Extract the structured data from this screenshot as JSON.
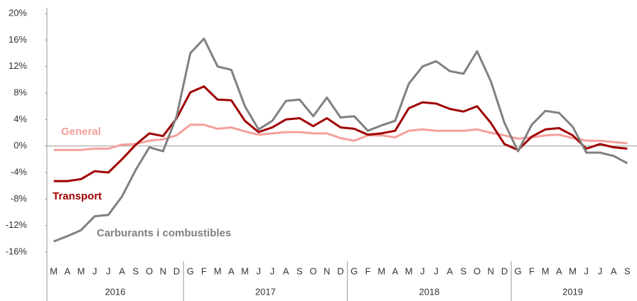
{
  "chart_data": {
    "type": "line",
    "groups": [
      {
        "label": "2016",
        "categories": [
          "M",
          "A",
          "M",
          "J",
          "J",
          "A",
          "S",
          "O",
          "N",
          "D"
        ]
      },
      {
        "label": "2017",
        "categories": [
          "G",
          "F",
          "M",
          "A",
          "M",
          "J",
          "J",
          "A",
          "S",
          "O",
          "N",
          "D"
        ]
      },
      {
        "label": "2018",
        "categories": [
          "G",
          "F",
          "M",
          "A",
          "M",
          "J",
          "J",
          "A",
          "S",
          "O",
          "N",
          "D"
        ]
      },
      {
        "label": "2019",
        "categories": [
          "G",
          "F",
          "M",
          "A",
          "M",
          "J",
          "J",
          "A",
          "S"
        ]
      }
    ],
    "series": [
      {
        "name": "General",
        "color": "#f4a09c",
        "values": [
          -0.6,
          -0.6,
          -0.6,
          -0.4,
          -0.4,
          0.2,
          0.3,
          0.8,
          1,
          1.6,
          3.2,
          3.2,
          2.6,
          2.8,
          2.2,
          1.7,
          1.9,
          2.1,
          2.1,
          1.9,
          1.9,
          1.2,
          0.8,
          1.6,
          1.6,
          1.3,
          2.3,
          2.5,
          2.3,
          2.3,
          2.3,
          2.5,
          2,
          1.6,
          1.1,
          1.3,
          1.6,
          1.7,
          1.2,
          0.8,
          0.8,
          0.6,
          0.4
        ]
      },
      {
        "name": "Transport",
        "color": "#a00000",
        "values": [
          -5.3,
          -5.3,
          -5,
          -3.8,
          -4,
          -2,
          0.2,
          1.9,
          1.5,
          4.2,
          8.1,
          9,
          7,
          6.9,
          3.8,
          2.1,
          2.8,
          4,
          4.2,
          3,
          4.2,
          2.8,
          2.6,
          1.7,
          1.9,
          2.3,
          5.7,
          6.6,
          6.4,
          5.6,
          5.2,
          6,
          3.5,
          0.3,
          -0.6,
          1.4,
          2.5,
          2.7,
          1.6,
          -0.4,
          0.3,
          -0.2,
          -0.4
        ]
      },
      {
        "name": "Carburants i combustibles",
        "color": "#808080",
        "values": [
          -14.4,
          -13.6,
          -12.7,
          -10.6,
          -10.4,
          -7.6,
          -3.6,
          -0.2,
          -0.8,
          4.5,
          14,
          16.2,
          12,
          11.5,
          6,
          2.5,
          3.8,
          6.8,
          7,
          4.5,
          7.3,
          4.3,
          4.5,
          2.3,
          3.1,
          3.8,
          9.4,
          12,
          12.8,
          11.3,
          10.9,
          14.3,
          9.8,
          3.5,
          -0.8,
          3.2,
          5.3,
          5,
          2.9,
          -1,
          -1,
          -1.5,
          -2.6
        ]
      }
    ],
    "ylim": [
      -16,
      20
    ],
    "yticks": [
      {
        "value": 20,
        "label": "20%"
      },
      {
        "value": 16,
        "label": "16%"
      },
      {
        "value": 12,
        "label": "12%"
      },
      {
        "value": 8,
        "label": "8%"
      },
      {
        "value": 4,
        "label": "4%"
      },
      {
        "value": 0,
        "label": "0%"
      },
      {
        "value": -4,
        "label": "-4%"
      },
      {
        "value": -8,
        "label": "-8%"
      },
      {
        "value": -12,
        "label": "-12%"
      },
      {
        "value": -16,
        "label": "-16%"
      }
    ]
  }
}
